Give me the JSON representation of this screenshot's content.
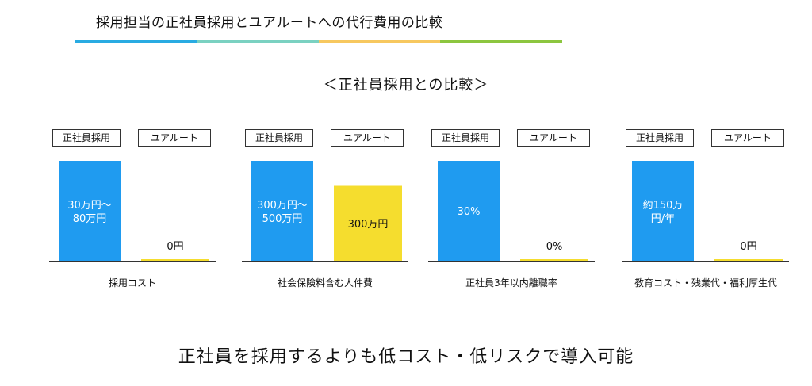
{
  "header": {
    "title": "採用担当の正社員採用とユアルートへの代行費用の比較",
    "rule_colors": [
      "#29ABE2",
      "#7AD1C1",
      "#F7C85F",
      "#8CC63F"
    ]
  },
  "section_title": "＜正社員採用との比較＞",
  "legend": [
    "正社員採用",
    "ユアルート"
  ],
  "colors": {
    "regular": "#1F9BF0",
    "yourroute": "#F5DD2E",
    "axis": "#333333"
  },
  "chart_data": [
    {
      "type": "bar",
      "category": "採用コスト",
      "series": [
        {
          "name": "正社員採用",
          "value": 100,
          "label": [
            "30万円～",
            "80万円"
          ],
          "label_color": "#ffffff"
        },
        {
          "name": "ユアルート",
          "value": 1.5,
          "label": [
            "0円"
          ],
          "label_color": "#111111"
        }
      ]
    },
    {
      "type": "bar",
      "category": "社会保険料含む人件費",
      "series": [
        {
          "name": "正社員採用",
          "value": 100,
          "label": [
            "300万円～",
            "500万円"
          ],
          "label_color": "#ffffff"
        },
        {
          "name": "ユアルート",
          "value": 75,
          "label": [
            "300万円"
          ],
          "label_color": "#111111"
        }
      ]
    },
    {
      "type": "bar",
      "category": "正社員3年以内離職率",
      "series": [
        {
          "name": "正社員採用",
          "value": 100,
          "label": [
            "30%"
          ],
          "label_color": "#ffffff"
        },
        {
          "name": "ユアルート",
          "value": 1.5,
          "label": [
            "0%"
          ],
          "label_color": "#111111"
        }
      ]
    },
    {
      "type": "bar",
      "category": "教育コスト・残業代・福利厚生代",
      "series": [
        {
          "name": "正社員採用",
          "value": 100,
          "label": [
            "約150万",
            "円/年"
          ],
          "label_color": "#ffffff"
        },
        {
          "name": "ユアルート",
          "value": 1.5,
          "label": [
            "0円"
          ],
          "label_color": "#111111"
        }
      ]
    }
  ],
  "bottom_message": "正社員を採用するよりも低コスト・低リスクで導入可能"
}
